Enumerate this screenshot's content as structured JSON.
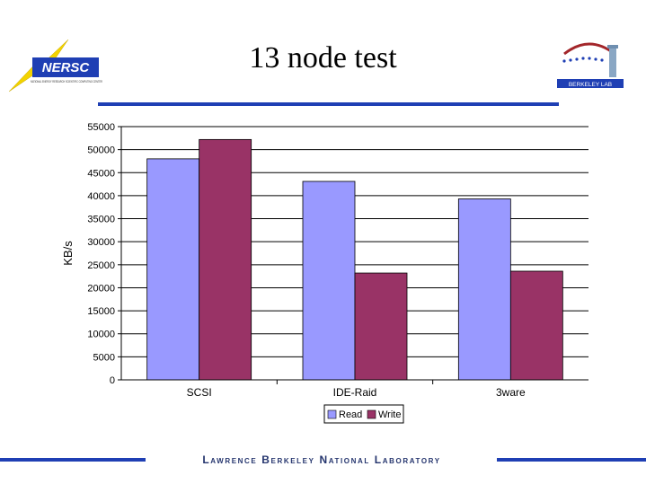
{
  "slide": {
    "title": "13 node test",
    "footer": "Lawrence Berkeley National Laboratory",
    "nersc_logo_text": "NERSC",
    "nersc_logo_caption": "NATIONAL ENERGY RESEARCH SCIENTIFIC COMPUTING CENTER",
    "lbl_logo_text": "BERKELEY LAB"
  },
  "colors": {
    "accent_rule": "#1f3fb4",
    "read": "#9999ff",
    "write": "#993366",
    "footer_text": "#25356e"
  },
  "chart_data": {
    "type": "bar",
    "title": "",
    "xlabel": "",
    "ylabel": "KB/s",
    "categories": [
      "SCSI",
      "IDE-Raid",
      "3ware"
    ],
    "series": [
      {
        "name": "Read",
        "values": [
          48000,
          43100,
          39300
        ]
      },
      {
        "name": "Write",
        "values": [
          52200,
          23200,
          23600
        ]
      }
    ],
    "ylim": [
      0,
      55000
    ],
    "ytick_step": 5000,
    "grid": true,
    "legend": "bottom-center"
  }
}
